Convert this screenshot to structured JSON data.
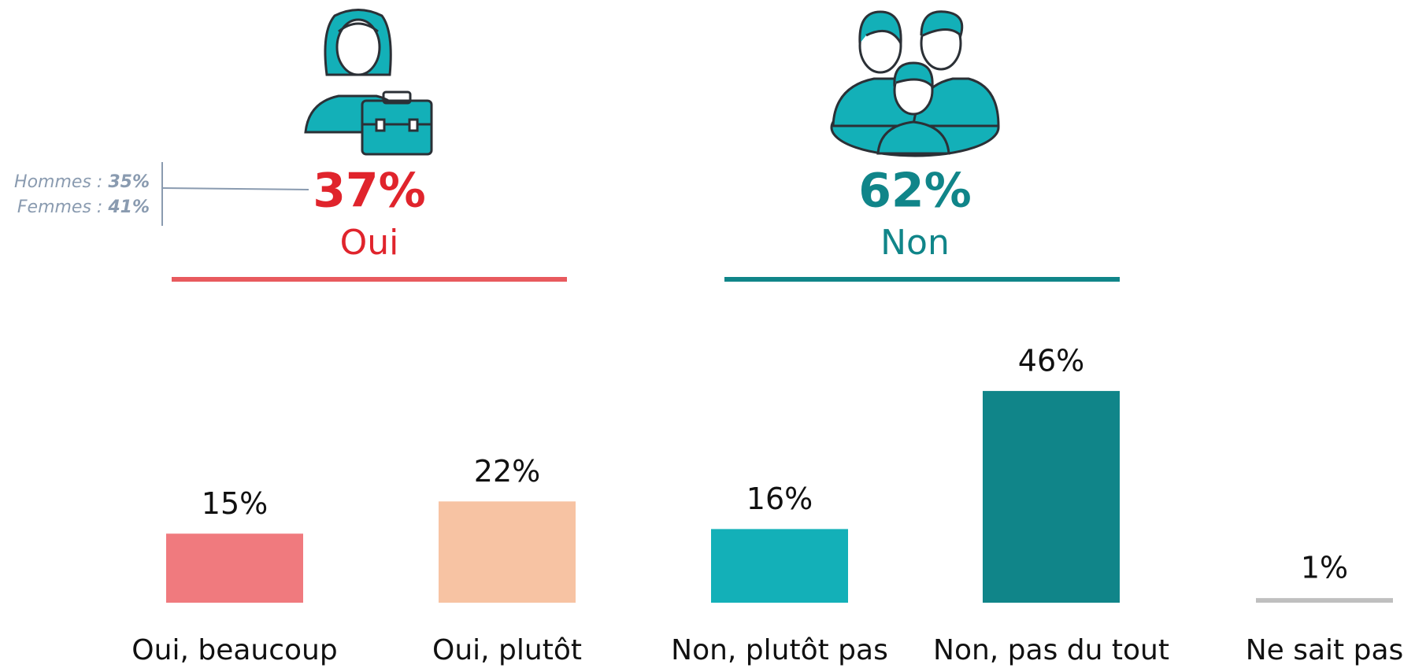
{
  "chart_data": {
    "type": "bar",
    "categories": [
      "Oui, beaucoup",
      "Oui, plutôt",
      "Non, plutôt pas",
      "Non, pas du tout",
      "Ne sait pas"
    ],
    "values": [
      15,
      22,
      16,
      46,
      1
    ],
    "value_labels": [
      "15%",
      "22%",
      "16%",
      "46%",
      "1%"
    ],
    "colors": [
      "#f07a7e",
      "#f7c3a3",
      "#13b0b8",
      "#108589",
      "#bfbfbf"
    ],
    "summary": [
      {
        "label": "Oui",
        "value": 37,
        "value_label": "37%",
        "color": "#e0242c",
        "line_color": "#e85a5e"
      },
      {
        "label": "Non",
        "value": 62,
        "value_label": "62%",
        "color": "#108589",
        "line_color": "#108589"
      }
    ],
    "breakdown": [
      {
        "label": "Hommes :",
        "value": 35,
        "value_label": "35%"
      },
      {
        "label": "Femmes :",
        "value": 41,
        "value_label": "41%"
      }
    ]
  }
}
